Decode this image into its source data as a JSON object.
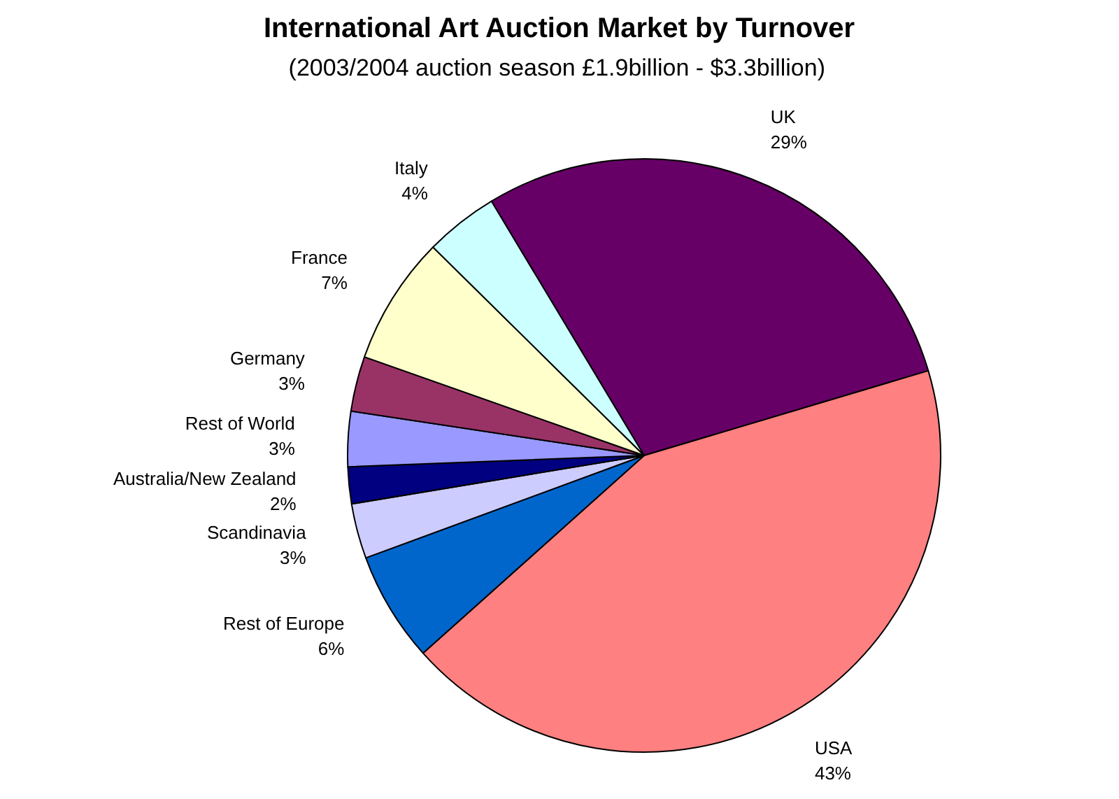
{
  "chart_data": {
    "type": "pie",
    "title": "International Art Auction Market by Turnover",
    "subtitle": "(2003/2004 auction season  £1.9billion - $3.3billion)",
    "categories": [
      "UK",
      "USA",
      "Rest of Europe",
      "Scandinavia",
      "Australia/New Zealand",
      "Rest of World",
      "Germany",
      "France",
      "Italy"
    ],
    "values": [
      29,
      43,
      6,
      3,
      2,
      3,
      3,
      7,
      4
    ],
    "value_labels": [
      "29%",
      "43%",
      "6%",
      "3%",
      "2%",
      "3%",
      "3%",
      "7%",
      "4%"
    ],
    "colors": [
      "#660066",
      "#ff8080",
      "#0066cc",
      "#ccccff",
      "#000080",
      "#9999ff",
      "#993366",
      "#ffffcc",
      "#ccffff"
    ]
  }
}
